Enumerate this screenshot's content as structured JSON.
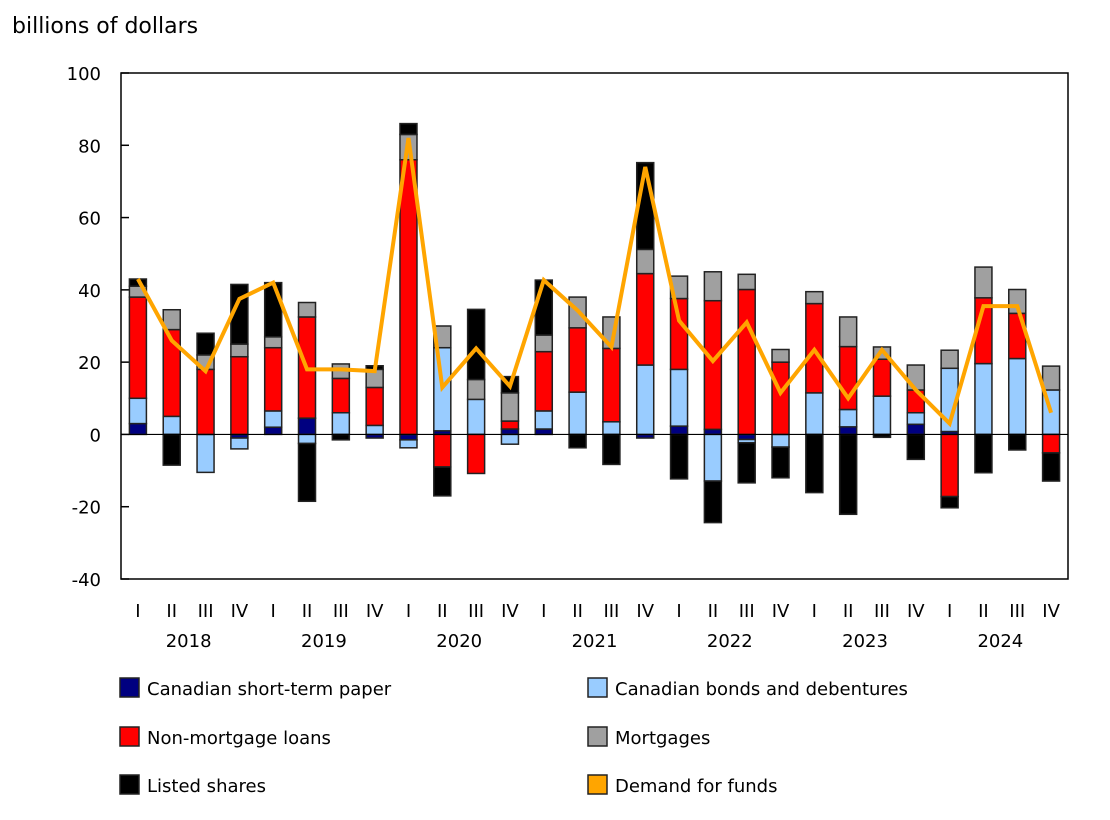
{
  "chart_data": {
    "type": "bar",
    "stacked": true,
    "ylabel": "billions of dollars",
    "ylim": [
      -40,
      100
    ],
    "yticks": [
      -40,
      -20,
      0,
      20,
      40,
      60,
      80,
      100
    ],
    "grid": false,
    "legend_placement": "bottom",
    "quarters": [
      "I",
      "II",
      "III",
      "IV",
      "I",
      "II",
      "III",
      "IV",
      "I",
      "II",
      "III",
      "IV",
      "I",
      "II",
      "III",
      "IV",
      "I",
      "II",
      "III",
      "IV",
      "I",
      "II",
      "III",
      "IV",
      "I",
      "II",
      "III",
      "IV"
    ],
    "years": [
      "2018",
      "2019",
      "2020",
      "2021",
      "2022",
      "2023",
      "2024"
    ],
    "series": [
      {
        "name": "Canadian short-term paper",
        "color": "#000080",
        "kind": "bar",
        "values": [
          3,
          0,
          0,
          -1,
          2,
          4.5,
          0,
          -1,
          -1.5,
          1,
          0,
          1.5,
          1.5,
          0,
          0,
          -1,
          2.3,
          1.4,
          -1.4,
          0,
          0,
          2.1,
          0,
          2.8,
          0.8,
          0,
          0,
          0
        ]
      },
      {
        "name": "Canadian bonds and debentures",
        "color": "#99ccff",
        "kind": "bar",
        "values": [
          7,
          5,
          -10.5,
          -3,
          4.5,
          -2.5,
          6,
          2.5,
          -2.2,
          23,
          9.7,
          -2.7,
          5,
          11.7,
          3.5,
          19.2,
          15.7,
          -12.9,
          -0.9,
          -3.5,
          11.5,
          4.8,
          10.6,
          3.2,
          17.5,
          19.6,
          21,
          12.3
        ]
      },
      {
        "name": "Non-mortgage loans",
        "color": "#ff0000",
        "kind": "bar",
        "values": [
          28,
          24,
          18,
          21.5,
          17.5,
          28,
          9.5,
          10.5,
          76,
          -9,
          -10.8,
          2.2,
          16.4,
          17.8,
          20.3,
          25.3,
          19.6,
          35.6,
          40.1,
          20,
          24.7,
          17.4,
          10.2,
          6.3,
          -17.2,
          18.2,
          12.5,
          -5.1
        ]
      },
      {
        "name": "Mortgages",
        "color": "#a0a0a0",
        "kind": "bar",
        "values": [
          3,
          5.5,
          4,
          3.5,
          3,
          4,
          4,
          5,
          7,
          6,
          5.5,
          7.8,
          4.6,
          8.5,
          8.7,
          6.7,
          6.2,
          8,
          4.2,
          3.5,
          3.3,
          8.2,
          3.4,
          6.9,
          5,
          8.5,
          6.6,
          6.6
        ]
      },
      {
        "name": "Listed shares",
        "color": "#000000",
        "kind": "bar",
        "values": [
          2,
          -8.5,
          6,
          16.5,
          15,
          -16,
          -1.5,
          1,
          3,
          -8,
          19.4,
          4.5,
          15.2,
          -3.7,
          -8.3,
          24,
          -12.3,
          -11.5,
          -11.1,
          -8.5,
          -16.1,
          -22.1,
          -0.8,
          -6.9,
          -3.1,
          -10.6,
          -4.3,
          -7.8
        ]
      },
      {
        "name": "Demand for funds",
        "color": "#ffa500",
        "kind": "line",
        "values": [
          43,
          26,
          17.5,
          37.5,
          42,
          18,
          18,
          17.5,
          82,
          13,
          23.8,
          13.3,
          42.7,
          34.3,
          24.2,
          74,
          31.5,
          20.3,
          31,
          11.5,
          23.4,
          10,
          23.4,
          12.3,
          3,
          35.5,
          35.5,
          6
        ]
      }
    ]
  }
}
